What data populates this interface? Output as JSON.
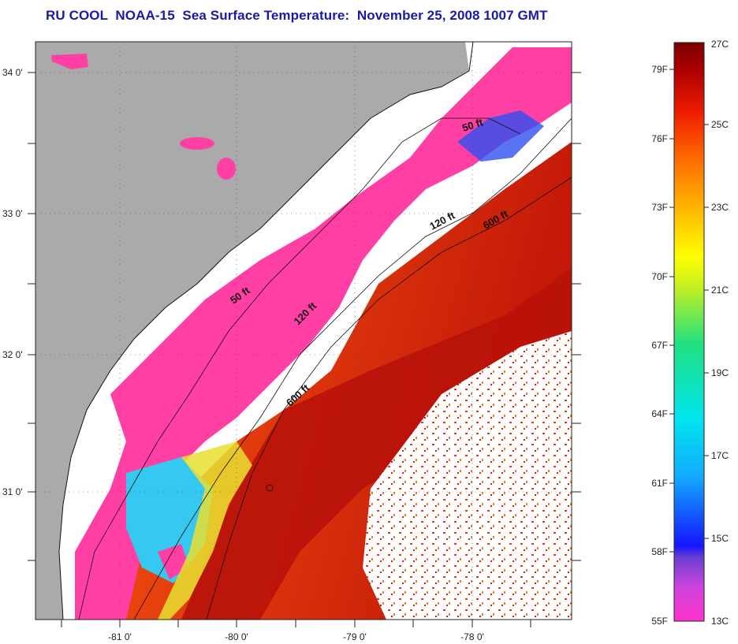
{
  "header": {
    "title": "RU COOL  NOAA-15  Sea Surface Temperature:  November 25, 2008 1007 GMT"
  },
  "axes": {
    "latitude_labels": [
      "34 0'",
      "33 0'",
      "32 0'",
      "31 0'"
    ],
    "longitude_labels": [
      "-81 0'",
      "-80 0'",
      "-79 0'",
      "-78 0'"
    ]
  },
  "contours": {
    "labels": [
      "50 ft",
      "120 ft",
      "600 ft",
      "50 ft",
      "120 ft",
      "600 ft"
    ]
  },
  "colorbar": {
    "fahrenheit_labels": [
      "79F",
      "76F",
      "73F",
      "70F",
      "67F",
      "64F",
      "61F",
      "58F",
      "55F"
    ],
    "celsius_labels": [
      "27C",
      "25C",
      "23C",
      "21C",
      "19C",
      "17C",
      "15C",
      "13C"
    ]
  },
  "colors": {
    "land": "#aaaaaa",
    "cloud": "#ffffff",
    "cold": "#ff3fa4",
    "warm": "#cc1a0a",
    "title": "#1a1aa8"
  }
}
